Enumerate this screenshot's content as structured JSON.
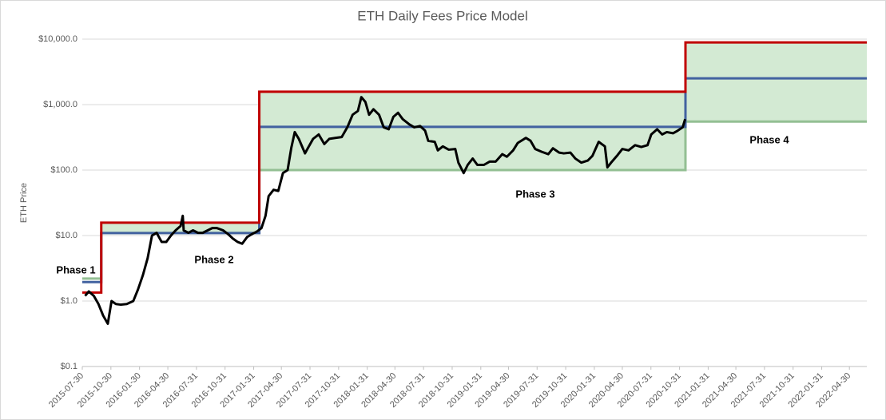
{
  "chart_data": {
    "type": "line",
    "title": "ETH Daily Fees Price Model",
    "y_label": "ETH Price",
    "log_scale": true,
    "grid": true,
    "xlim": [
      "2015-07-30",
      "2022-06-25"
    ],
    "xticks": [
      "2015-07-30",
      "2015-10-30",
      "2016-01-30",
      "2016-04-30",
      "2016-07-31",
      "2016-10-31",
      "2017-01-31",
      "2017-04-30",
      "2017-07-31",
      "2017-10-31",
      "2018-01-31",
      "2018-04-30",
      "2018-07-31",
      "2018-10-31",
      "2019-01-31",
      "2019-04-30",
      "2019-07-31",
      "2019-10-31",
      "2020-01-31",
      "2020-04-30",
      "2020-07-31",
      "2020-10-31",
      "2021-01-31",
      "2021-04-30",
      "2021-07-31",
      "2021-10-31",
      "2022-01-31",
      "2022-04-30"
    ],
    "ylim": [
      0.1,
      10000
    ],
    "yticks": [
      {
        "value": 0.1,
        "label": "$0.1"
      },
      {
        "value": 1,
        "label": "$1.0"
      },
      {
        "value": 10,
        "label": "$10.0"
      },
      {
        "value": 100,
        "label": "$100.0"
      },
      {
        "value": 1000,
        "label": "$1,000.0"
      },
      {
        "value": 10000,
        "label": "$10,000.0"
      }
    ],
    "fill_color": "#d3ead3",
    "bands": [
      {
        "color": "#c00000",
        "x": [
          "2015-07-30",
          "2015-09-29",
          "2017-02-18",
          "2020-11-19",
          "2022-06-25"
        ],
        "values": [
          1.35,
          15.7,
          1570,
          8900,
          8900
        ]
      },
      {
        "color": "#4262a0",
        "x": [
          "2015-07-30",
          "2015-09-29",
          "2017-02-18",
          "2020-11-19",
          "2022-06-25"
        ],
        "values": [
          1.95,
          10.9,
          457,
          2520,
          2520
        ]
      },
      {
        "color": "#93bf93",
        "x": [
          "2015-07-30",
          "2015-09-29",
          "2017-02-18",
          "2020-11-19",
          "2022-06-25"
        ],
        "values": [
          2.2,
          10.9,
          100,
          550,
          550
        ]
      }
    ],
    "price": {
      "color": "#000000",
      "x": [
        "2015-08-08",
        "2015-08-20",
        "2015-09-05",
        "2015-09-20",
        "2015-10-05",
        "2015-10-20",
        "2015-11-01",
        "2015-11-15",
        "2015-12-01",
        "2015-12-20",
        "2016-01-10",
        "2016-01-25",
        "2016-02-10",
        "2016-02-25",
        "2016-03-10",
        "2016-03-25",
        "2016-04-10",
        "2016-04-25",
        "2016-05-10",
        "2016-05-25",
        "2016-06-10",
        "2016-06-17",
        "2016-06-20",
        "2016-07-05",
        "2016-07-20",
        "2016-08-05",
        "2016-08-20",
        "2016-09-05",
        "2016-09-20",
        "2016-10-05",
        "2016-10-25",
        "2016-11-10",
        "2016-11-25",
        "2016-12-10",
        "2016-12-25",
        "2017-01-10",
        "2017-01-25",
        "2017-02-10",
        "2017-02-25",
        "2017-03-10",
        "2017-03-20",
        "2017-04-05",
        "2017-04-20",
        "2017-05-05",
        "2017-05-20",
        "2017-06-01",
        "2017-06-12",
        "2017-06-25",
        "2017-07-15",
        "2017-07-25",
        "2017-08-10",
        "2017-08-28",
        "2017-09-15",
        "2017-10-01",
        "2017-10-20",
        "2017-11-10",
        "2017-11-28",
        "2017-12-15",
        "2018-01-01",
        "2018-01-12",
        "2018-01-25",
        "2018-02-06",
        "2018-02-20",
        "2018-03-10",
        "2018-03-25",
        "2018-04-10",
        "2018-04-25",
        "2018-05-10",
        "2018-05-25",
        "2018-06-15",
        "2018-07-01",
        "2018-07-20",
        "2018-08-05",
        "2018-08-15",
        "2018-09-05",
        "2018-09-15",
        "2018-10-01",
        "2018-10-20",
        "2018-11-10",
        "2018-11-20",
        "2018-12-07",
        "2018-12-20",
        "2019-01-05",
        "2019-01-20",
        "2019-02-10",
        "2019-03-01",
        "2019-03-20",
        "2019-04-10",
        "2019-04-25",
        "2019-05-15",
        "2019-05-30",
        "2019-06-25",
        "2019-07-10",
        "2019-07-25",
        "2019-08-15",
        "2019-09-05",
        "2019-09-20",
        "2019-10-10",
        "2019-10-25",
        "2019-11-15",
        "2019-12-01",
        "2019-12-20",
        "2020-01-10",
        "2020-01-25",
        "2020-02-14",
        "2020-03-05",
        "2020-03-13",
        "2020-03-25",
        "2020-04-15",
        "2020-04-30",
        "2020-05-20",
        "2020-06-10",
        "2020-06-30",
        "2020-07-20",
        "2020-08-01",
        "2020-08-20",
        "2020-09-05",
        "2020-09-20",
        "2020-10-10",
        "2020-10-25",
        "2020-11-10",
        "2020-11-18"
      ],
      "values": [
        1.2,
        1.4,
        1.2,
        0.9,
        0.6,
        0.45,
        1.0,
        0.9,
        0.88,
        0.9,
        1.0,
        1.5,
        2.5,
        4.5,
        10,
        11,
        8,
        8,
        10,
        12,
        14,
        20,
        12,
        11,
        12,
        11,
        11,
        12,
        13,
        13,
        12,
        10.5,
        9,
        8,
        7.5,
        9.5,
        10.5,
        11.5,
        13,
        20,
        40,
        50,
        48,
        90,
        100,
        220,
        380,
        300,
        180,
        220,
        300,
        350,
        250,
        300,
        310,
        320,
        450,
        700,
        800,
        1300,
        1100,
        700,
        850,
        700,
        450,
        420,
        650,
        750,
        600,
        500,
        450,
        470,
        400,
        280,
        270,
        200,
        230,
        205,
        210,
        130,
        90,
        120,
        150,
        120,
        120,
        135,
        135,
        175,
        160,
        200,
        260,
        310,
        280,
        210,
        190,
        175,
        215,
        185,
        180,
        185,
        150,
        130,
        140,
        165,
        270,
        230,
        110,
        130,
        170,
        210,
        200,
        240,
        225,
        240,
        350,
        420,
        350,
        380,
        365,
        400,
        450,
        600
      ]
    },
    "annotations": [
      "Phase 1",
      "Phase 2",
      "Phase 3",
      "Phase 4"
    ]
  }
}
